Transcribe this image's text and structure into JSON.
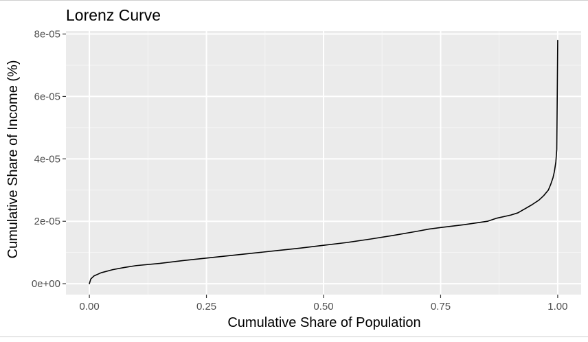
{
  "chart_data": {
    "type": "line",
    "title": "Lorenz Curve",
    "xlabel": "Cumulative Share of Population",
    "ylabel": "Cumulative Share of Income (%)",
    "xlim": [
      -0.05,
      1.05
    ],
    "ylim": [
      -3.5e-06,
      8.1e-05
    ],
    "x_ticks": [
      {
        "value": 0,
        "label": "0.00"
      },
      {
        "value": 0.25,
        "label": "0.25"
      },
      {
        "value": 0.5,
        "label": "0.50"
      },
      {
        "value": 0.75,
        "label": "0.75"
      },
      {
        "value": 1,
        "label": "1.00"
      }
    ],
    "y_ticks": [
      {
        "value": 0,
        "label": "0e+00"
      },
      {
        "value": 2e-05,
        "label": "2e-05"
      },
      {
        "value": 4e-05,
        "label": "4e-05"
      },
      {
        "value": 6e-05,
        "label": "6e-05"
      },
      {
        "value": 8e-05,
        "label": "8e-05"
      }
    ],
    "grid": true,
    "legend": "none",
    "colors": {
      "panel_background": "#ebebeb",
      "grid_major": "#ffffff",
      "grid_minor": "#f5f5f5",
      "line": "#000000",
      "tick_text": "#4d4d4d",
      "text": "#000000"
    },
    "series": [
      {
        "x": [
          0.0,
          0.003,
          0.01,
          0.025,
          0.05,
          0.075,
          0.1,
          0.15,
          0.2,
          0.25,
          0.3,
          0.35,
          0.4,
          0.45,
          0.5,
          0.55,
          0.6,
          0.65,
          0.7,
          0.725,
          0.75,
          0.8,
          0.85,
          0.87,
          0.9,
          0.915,
          0.93,
          0.945,
          0.96,
          0.97,
          0.98,
          0.985,
          0.99,
          0.993,
          0.996,
          0.998,
          0.999,
          1.0
        ],
        "y": [
          0.0,
          1.5e-06,
          2.5e-06,
          3.5e-06,
          4.5e-06,
          5.2e-06,
          5.8e-06,
          6.5e-06,
          7.4e-06,
          8.2e-06,
          9e-06,
          9.8e-06,
          1.06e-05,
          1.14e-05,
          1.23e-05,
          1.32e-05,
          1.43e-05,
          1.55e-05,
          1.68e-05,
          1.75e-05,
          1.8e-05,
          1.89e-05,
          2e-05,
          2.1e-05,
          2.2e-05,
          2.27e-05,
          2.4e-05,
          2.53e-05,
          2.68e-05,
          2.82e-05,
          3e-05,
          3.18e-05,
          3.4e-05,
          3.6e-05,
          3.9e-05,
          4.3e-05,
          6e-05,
          7.8e-05
        ]
      }
    ]
  }
}
